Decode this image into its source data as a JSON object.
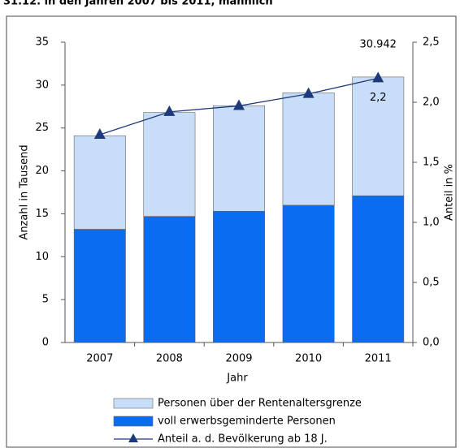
{
  "chart_data": {
    "type": "bar",
    "title": "31.12. in den Jahren 2007 bis 2011, männlich",
    "categories": [
      "2007",
      "2008",
      "2009",
      "2010",
      "2011"
    ],
    "xlabel": "Jahr",
    "ylabel": "Anzahl in Tausend",
    "y2label": "Anteil in %",
    "series": [
      {
        "name": "voll erwerbsgeminderte Personen",
        "color": "#0a6cf0",
        "values": [
          13.2,
          14.7,
          15.3,
          16.0,
          17.1
        ]
      },
      {
        "name": "Personen über der Rentenaltersgrenze",
        "color": "#c8ddf8",
        "values": [
          10.9,
          12.1,
          12.3,
          13.1,
          13.842
        ]
      },
      {
        "name": "Anteil a. d. Bevölkerung ab 18 J.",
        "color": "#1f3a7a",
        "axis": "y2",
        "type": "line",
        "values": [
          1.73,
          1.92,
          1.97,
          2.07,
          2.2
        ],
        "value_labels": [
          null,
          null,
          null,
          null,
          "2,2"
        ]
      }
    ],
    "annotation": "30.942",
    "ylim": [
      0,
      35
    ],
    "yticks": [
      0,
      5,
      10,
      15,
      20,
      25,
      30,
      35
    ],
    "y2lim": [
      0,
      2.5
    ],
    "y2ticks": [
      {
        "value": 0,
        "label": "0,0"
      },
      {
        "value": 0.5,
        "label": "0,5"
      },
      {
        "value": 1,
        "label": "1,0"
      },
      {
        "value": 1.5,
        "label": "1,5"
      },
      {
        "value": 2,
        "label": "2,0"
      },
      {
        "value": 2.5,
        "label": "2,5"
      }
    ],
    "grid": false,
    "legend": "bottom"
  }
}
